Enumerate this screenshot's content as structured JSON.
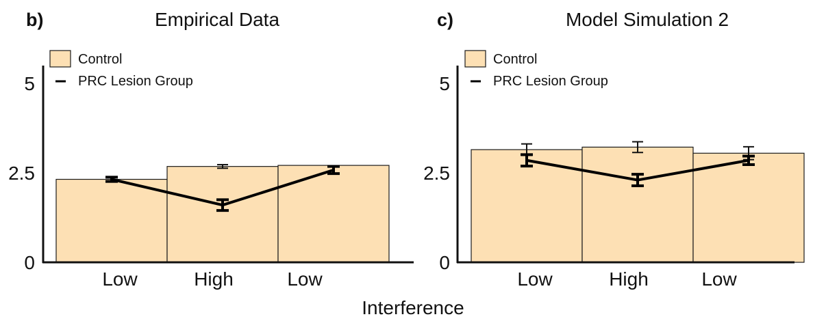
{
  "figure": {
    "shared_xlabel": "Interference"
  },
  "chart_data": [
    {
      "type": "bar",
      "panel_letter": "b)",
      "title": "Empirical Data",
      "categories": [
        "Low",
        "High",
        "Low"
      ],
      "ylim": [
        0,
        5.5
      ],
      "yticks": [
        "0",
        "2.5",
        "5"
      ],
      "ytick_values": [
        0,
        2.5,
        5
      ],
      "legend_position": "top-left",
      "grid": false,
      "series": [
        {
          "name": "Control",
          "kind": "bar",
          "color": "#fde0b4",
          "edge_color": "#1a1a1a",
          "values": [
            2.32,
            2.68,
            2.71
          ],
          "errors": [
            0.06,
            0.05,
            0.0
          ]
        },
        {
          "name": "PRC Lesion Group",
          "kind": "line",
          "color": "#000000",
          "values": [
            2.32,
            1.6,
            2.58
          ],
          "errors": [
            0.06,
            0.15,
            0.1
          ]
        }
      ]
    },
    {
      "type": "bar",
      "panel_letter": "c)",
      "title": "Model Simulation 2",
      "categories": [
        "Low",
        "High",
        "Low"
      ],
      "ylim": [
        0,
        5.5
      ],
      "yticks": [
        "0",
        "2.5",
        "5"
      ],
      "ytick_values": [
        0,
        2.5,
        5
      ],
      "legend_position": "top-left",
      "grid": false,
      "series": [
        {
          "name": "Control",
          "kind": "bar",
          "color": "#fde0b4",
          "edge_color": "#1a1a1a",
          "values": [
            3.15,
            3.22,
            3.05
          ],
          "errors": [
            0.16,
            0.15,
            0.18
          ]
        },
        {
          "name": "PRC Lesion Group",
          "kind": "line",
          "color": "#000000",
          "values": [
            2.85,
            2.3,
            2.85
          ],
          "errors": [
            0.16,
            0.16,
            0.12
          ]
        }
      ]
    }
  ]
}
